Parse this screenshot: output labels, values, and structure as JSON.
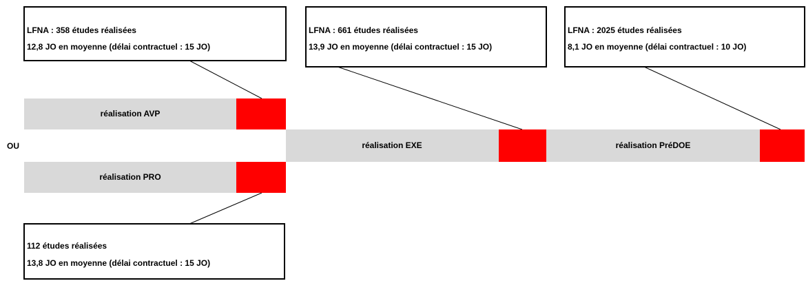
{
  "separator": "OU",
  "callouts": [
    {
      "lines": [
        "LFNA : 358 études réalisées",
        "12,8 JO en moyenne (délai contractuel : 15 JO)"
      ]
    },
    {
      "lines": [
        "LFNA : 661 études réalisées",
        "13,9 JO en moyenne  (délai contractuel : 15 JO)"
      ]
    },
    {
      "lines": [
        "LFNA : 2025 études réalisées",
        "8,1 JO en moyenne (délai contractuel : 10 JO)"
      ]
    },
    {
      "lines": [
        "112 études réalisées",
        "13,8 JO en moyenne (délai contractuel : 15 JO)"
      ]
    }
  ],
  "bars": [
    {
      "label": "réalisation AVP"
    },
    {
      "label": "réalisation PRO"
    },
    {
      "label": "réalisation EXE"
    },
    {
      "label": "réalisation PréDOE"
    }
  ]
}
